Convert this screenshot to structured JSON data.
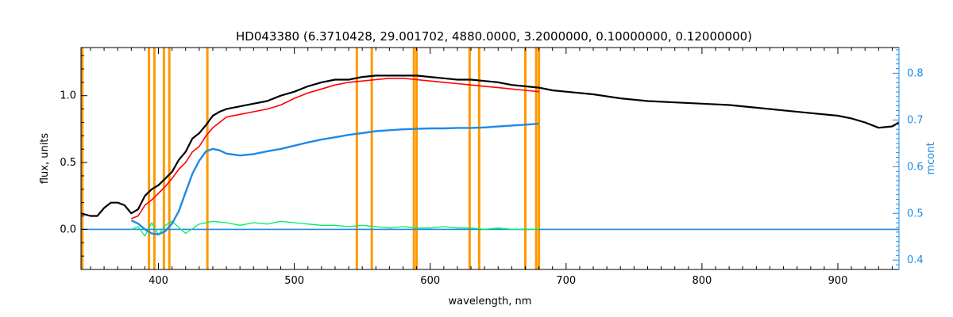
{
  "chart_data": {
    "type": "line",
    "title": "HD043380    (6.3710428, 29.001702, 4880.0000, 3.2000000, 0.10000000, 0.12000000)",
    "xlabel": "wavelength, nm",
    "ylabel": "flux, units",
    "y2label": "mcont",
    "xlim": [
      343,
      945
    ],
    "ylim": [
      -0.3,
      1.36
    ],
    "y2lim": [
      0.38,
      0.855
    ],
    "xticks": [
      {
        "value": 400,
        "label": "400"
      },
      {
        "value": 500,
        "label": "500"
      },
      {
        "value": 600,
        "label": "600"
      },
      {
        "value": 700,
        "label": "700"
      },
      {
        "value": 800,
        "label": "800"
      },
      {
        "value": 900,
        "label": "900"
      }
    ],
    "yticks": [
      {
        "value": 0.0,
        "label": "0.0"
      },
      {
        "value": 0.5,
        "label": "0.5"
      },
      {
        "value": 1.0,
        "label": "1.0"
      }
    ],
    "y2ticks": [
      {
        "value": 0.4,
        "label": "0.4"
      },
      {
        "value": 0.5,
        "label": "0.5"
      },
      {
        "value": 0.6,
        "label": "0.6"
      },
      {
        "value": 0.7,
        "label": "0.7"
      },
      {
        "value": 0.8,
        "label": "0.8"
      }
    ],
    "grid": false,
    "vlines_color": "#ff9900",
    "vlines": [
      344,
      393,
      397,
      404,
      408,
      436,
      546,
      557,
      588,
      590,
      629,
      636,
      670,
      678,
      680
    ],
    "series": [
      {
        "kind": "observed",
        "color": "#000000",
        "x": [
          343,
          350,
          355,
          360,
          365,
          370,
          375,
          380,
          385,
          390,
          395,
          400,
          405,
          410,
          415,
          420,
          425,
          430,
          435,
          440,
          445,
          450,
          460,
          470,
          480,
          490,
          500,
          510,
          520,
          530,
          540,
          550,
          560,
          570,
          580,
          590,
          600,
          610,
          620,
          630,
          640,
          650,
          660,
          670,
          680,
          690,
          700,
          720,
          740,
          760,
          780,
          800,
          820,
          840,
          860,
          880,
          900,
          910,
          920,
          930,
          940,
          945
        ],
        "y": [
          0.12,
          0.1,
          0.1,
          0.16,
          0.2,
          0.2,
          0.18,
          0.12,
          0.15,
          0.25,
          0.3,
          0.33,
          0.38,
          0.43,
          0.52,
          0.58,
          0.68,
          0.72,
          0.78,
          0.85,
          0.88,
          0.9,
          0.92,
          0.94,
          0.96,
          1.0,
          1.03,
          1.07,
          1.1,
          1.12,
          1.12,
          1.14,
          1.15,
          1.15,
          1.15,
          1.15,
          1.14,
          1.13,
          1.12,
          1.12,
          1.11,
          1.1,
          1.08,
          1.07,
          1.06,
          1.04,
          1.03,
          1.01,
          0.98,
          0.96,
          0.95,
          0.94,
          0.93,
          0.91,
          0.89,
          0.87,
          0.85,
          0.83,
          0.8,
          0.76,
          0.77,
          0.8
        ]
      },
      {
        "kind": "model",
        "color": "#ff0000",
        "x": [
          380,
          385,
          390,
          395,
          400,
          405,
          410,
          415,
          420,
          425,
          430,
          435,
          440,
          445,
          450,
          460,
          470,
          480,
          490,
          500,
          510,
          520,
          530,
          540,
          550,
          560,
          570,
          580,
          590,
          600,
          610,
          620,
          630,
          640,
          650,
          660,
          670,
          680
        ],
        "y": [
          0.08,
          0.1,
          0.18,
          0.22,
          0.27,
          0.32,
          0.38,
          0.45,
          0.5,
          0.58,
          0.62,
          0.7,
          0.76,
          0.8,
          0.84,
          0.86,
          0.88,
          0.9,
          0.93,
          0.98,
          1.02,
          1.05,
          1.08,
          1.1,
          1.11,
          1.12,
          1.13,
          1.13,
          1.12,
          1.11,
          1.1,
          1.09,
          1.08,
          1.07,
          1.06,
          1.05,
          1.04,
          1.03
        ]
      },
      {
        "kind": "residual",
        "color": "#00ee66",
        "x": [
          380,
          385,
          390,
          395,
          400,
          405,
          410,
          420,
          430,
          440,
          450,
          460,
          470,
          480,
          490,
          500,
          510,
          520,
          530,
          540,
          550,
          560,
          570,
          580,
          590,
          600,
          610,
          620,
          630,
          640,
          650,
          660,
          670,
          680
        ],
        "y": [
          0.0,
          0.02,
          -0.05,
          0.05,
          -0.04,
          0.03,
          0.06,
          -0.03,
          0.04,
          0.06,
          0.05,
          0.03,
          0.05,
          0.04,
          0.06,
          0.05,
          0.04,
          0.03,
          0.03,
          0.02,
          0.03,
          0.02,
          0.01,
          0.02,
          0.01,
          0.01,
          0.02,
          0.01,
          0.01,
          0.0,
          0.01,
          0.0,
          0.0,
          0.0
        ]
      },
      {
        "kind": "continuum (mcont)",
        "axis": "right",
        "color": "#1e8ae6",
        "x": [
          380,
          385,
          390,
          395,
          400,
          405,
          410,
          415,
          420,
          425,
          430,
          435,
          440,
          445,
          450,
          460,
          470,
          480,
          490,
          500,
          510,
          520,
          530,
          540,
          550,
          560,
          570,
          580,
          590,
          600,
          610,
          620,
          630,
          640,
          650,
          660,
          670,
          680
        ],
        "y": [
          0.485,
          0.478,
          0.466,
          0.457,
          0.455,
          0.462,
          0.478,
          0.505,
          0.545,
          0.585,
          0.613,
          0.633,
          0.638,
          0.635,
          0.628,
          0.624,
          0.627,
          0.633,
          0.638,
          0.645,
          0.652,
          0.658,
          0.663,
          0.668,
          0.672,
          0.676,
          0.678,
          0.68,
          0.681,
          0.682,
          0.682,
          0.683,
          0.683,
          0.684,
          0.686,
          0.688,
          0.69,
          0.692
        ]
      },
      {
        "kind": "baseline",
        "color": "#1e8ae6",
        "x": [
          343,
          380,
          680,
          945
        ],
        "y": [
          0.0,
          0.0,
          0.0,
          0.0
        ]
      }
    ]
  }
}
